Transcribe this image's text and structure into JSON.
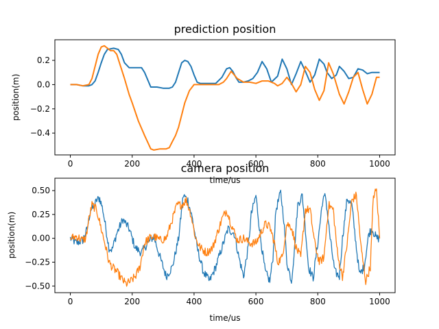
{
  "chart_data": [
    {
      "type": "line",
      "title": "prediction position",
      "xlabel": "time/us",
      "ylabel": "position(m)",
      "xlim": [
        -50,
        1050
      ],
      "ylim": [
        -0.58,
        0.37
      ],
      "xticks": [
        0,
        200,
        400,
        600,
        800,
        1000
      ],
      "yticks": [
        0.2,
        0.0,
        -0.2,
        -0.4
      ],
      "xtick_labels": [
        "0",
        "200",
        "400",
        "600",
        "800",
        "1000"
      ],
      "ytick_labels": [
        "0.2",
        "0.0",
        "−0.2",
        "−0.4"
      ],
      "grid": false,
      "series": [
        {
          "color": "#1f77b4",
          "x": [
            0,
            20,
            40,
            60,
            70,
            80,
            90,
            100,
            110,
            120,
            140,
            155,
            165,
            175,
            190,
            210,
            230,
            240,
            260,
            280,
            300,
            320,
            330,
            340,
            350,
            360,
            370,
            380,
            390,
            400,
            410,
            420,
            430,
            450,
            470,
            490,
            505,
            515,
            525,
            535,
            545,
            560,
            575,
            590,
            605,
            620,
            635,
            650,
            670,
            685,
            700,
            715,
            730,
            745,
            760,
            775,
            790,
            805,
            820,
            830,
            845,
            860,
            870,
            885,
            900,
            915,
            930,
            945,
            960,
            975,
            990,
            1000
          ],
          "y": [
            0.0,
            0.0,
            -0.01,
            -0.01,
            0.0,
            0.03,
            0.1,
            0.18,
            0.25,
            0.29,
            0.3,
            0.29,
            0.25,
            0.18,
            0.14,
            0.14,
            0.14,
            0.1,
            -0.02,
            -0.02,
            -0.03,
            -0.03,
            -0.02,
            0.02,
            0.1,
            0.18,
            0.2,
            0.19,
            0.15,
            0.08,
            0.02,
            0.01,
            0.01,
            0.01,
            0.01,
            0.06,
            0.13,
            0.14,
            0.11,
            0.06,
            0.02,
            0.02,
            0.03,
            0.05,
            0.1,
            0.19,
            0.13,
            0.02,
            0.07,
            0.21,
            0.13,
            0.0,
            0.09,
            0.19,
            0.11,
            0.02,
            0.08,
            0.21,
            0.17,
            0.1,
            0.05,
            0.08,
            0.15,
            0.11,
            0.05,
            0.06,
            0.13,
            0.12,
            0.09,
            0.1,
            0.1,
            0.1
          ]
        },
        {
          "color": "#ff7f0e",
          "x": [
            0,
            20,
            40,
            60,
            70,
            80,
            90,
            100,
            110,
            120,
            130,
            140,
            150,
            160,
            175,
            190,
            200,
            220,
            240,
            260,
            270,
            290,
            310,
            320,
            330,
            340,
            350,
            360,
            370,
            385,
            400,
            415,
            420,
            440,
            460,
            480,
            495,
            505,
            520,
            540,
            560,
            580,
            600,
            620,
            640,
            660,
            670,
            685,
            700,
            715,
            730,
            745,
            760,
            775,
            790,
            805,
            820,
            835,
            850,
            870,
            885,
            900,
            915,
            930,
            945,
            960,
            975,
            990,
            1000
          ],
          "y": [
            0.0,
            0.0,
            -0.01,
            0.0,
            0.05,
            0.15,
            0.25,
            0.31,
            0.32,
            0.3,
            0.28,
            0.28,
            0.25,
            0.17,
            0.05,
            -0.08,
            -0.15,
            -0.3,
            -0.42,
            -0.53,
            -0.54,
            -0.53,
            -0.53,
            -0.52,
            -0.47,
            -0.42,
            -0.35,
            -0.25,
            -0.15,
            -0.05,
            0.0,
            0.0,
            0.0,
            0.0,
            0.0,
            0.0,
            0.02,
            0.05,
            0.11,
            0.05,
            0.02,
            0.02,
            0.01,
            0.03,
            0.03,
            0.01,
            -0.01,
            0.01,
            0.06,
            0.01,
            -0.06,
            0.0,
            0.15,
            0.1,
            -0.04,
            -0.13,
            -0.05,
            0.18,
            0.09,
            -0.08,
            -0.16,
            -0.06,
            0.06,
            0.1,
            -0.04,
            -0.16,
            -0.08,
            0.06,
            0.06
          ]
        }
      ]
    },
    {
      "type": "line",
      "title": "camera position",
      "xlabel": "time/us",
      "ylabel": "position(m)",
      "xlim": [
        -50,
        1050
      ],
      "ylim": [
        -0.57,
        0.63
      ],
      "xticks": [
        0,
        200,
        400,
        600,
        800,
        1000
      ],
      "yticks": [
        0.5,
        0.25,
        0.0,
        -0.25,
        -0.5
      ],
      "xtick_labels": [
        "0",
        "200",
        "400",
        "600",
        "800",
        "1000"
      ],
      "ytick_labels": [
        "0.50",
        "0.25",
        "0.00",
        "−0.25",
        "−0.50"
      ],
      "grid": false,
      "series": [
        {
          "color": "#1f77b4",
          "x": [
            0,
            20,
            40,
            55,
            65,
            75,
            85,
            95,
            105,
            115,
            125,
            135,
            150,
            170,
            190,
            210,
            230,
            250,
            270,
            290,
            310,
            330,
            350,
            365,
            380,
            395,
            410,
            430,
            450,
            470,
            490,
            510,
            530,
            545,
            560,
            575,
            585,
            600,
            615,
            630,
            645,
            655,
            665,
            680,
            690,
            700,
            715,
            725,
            735,
            750,
            760,
            770,
            785,
            800,
            815,
            825,
            840,
            855,
            870,
            880,
            895,
            910,
            925,
            935,
            950,
            965,
            975,
            990,
            1000
          ],
          "y": [
            0.0,
            -0.05,
            -0.02,
            0.1,
            0.3,
            0.32,
            0.4,
            0.42,
            0.3,
            0.1,
            -0.1,
            -0.12,
            0.05,
            0.2,
            0.1,
            -0.1,
            -0.15,
            -0.05,
            0.02,
            -0.2,
            -0.4,
            -0.3,
            0.0,
            0.45,
            0.4,
            0.2,
            -0.1,
            -0.35,
            -0.45,
            -0.3,
            -0.1,
            0.1,
            0.05,
            -0.2,
            -0.4,
            -0.1,
            0.25,
            0.45,
            0.0,
            -0.35,
            -0.45,
            -0.2,
            0.3,
            0.48,
            0.2,
            -0.25,
            -0.45,
            -0.1,
            0.35,
            0.45,
            0.1,
            -0.3,
            -0.42,
            -0.05,
            0.38,
            0.45,
            0.0,
            -0.35,
            -0.4,
            0.0,
            0.42,
            0.35,
            -0.1,
            -0.38,
            -0.3,
            0.05,
            0.1,
            0.0,
            0.0
          ]
        },
        {
          "color": "#ff7f0e",
          "x": [
            0,
            20,
            40,
            50,
            60,
            70,
            85,
            100,
            115,
            125,
            135,
            150,
            165,
            180,
            195,
            210,
            225,
            240,
            255,
            270,
            290,
            310,
            330,
            345,
            360,
            375,
            390,
            405,
            420,
            440,
            460,
            475,
            490,
            505,
            520,
            540,
            560,
            580,
            600,
            615,
            630,
            645,
            660,
            670,
            685,
            700,
            715,
            730,
            745,
            760,
            775,
            790,
            805,
            820,
            835,
            850,
            865,
            880,
            895,
            910,
            925,
            940,
            955,
            970,
            980,
            990,
            1000
          ],
          "y": [
            0.0,
            0.02,
            -0.02,
            0.0,
            0.2,
            0.35,
            0.3,
            0.1,
            -0.1,
            -0.25,
            -0.3,
            -0.35,
            -0.42,
            -0.48,
            -0.45,
            -0.4,
            -0.3,
            -0.05,
            0.0,
            0.02,
            -0.02,
            0.0,
            0.2,
            0.35,
            0.35,
            0.4,
            0.25,
            0.0,
            -0.1,
            -0.15,
            -0.1,
            0.05,
            0.2,
            0.3,
            0.15,
            -0.02,
            0.0,
            -0.05,
            -0.05,
            0.05,
            0.15,
            0.12,
            -0.05,
            -0.25,
            -0.2,
            0.15,
            0.12,
            -0.1,
            -0.2,
            0.3,
            0.3,
            -0.05,
            -0.25,
            -0.2,
            0.35,
            0.3,
            -0.2,
            -0.4,
            -0.05,
            0.4,
            0.45,
            -0.1,
            -0.45,
            -0.3,
            0.45,
            0.5,
            0.0
          ]
        }
      ]
    }
  ]
}
